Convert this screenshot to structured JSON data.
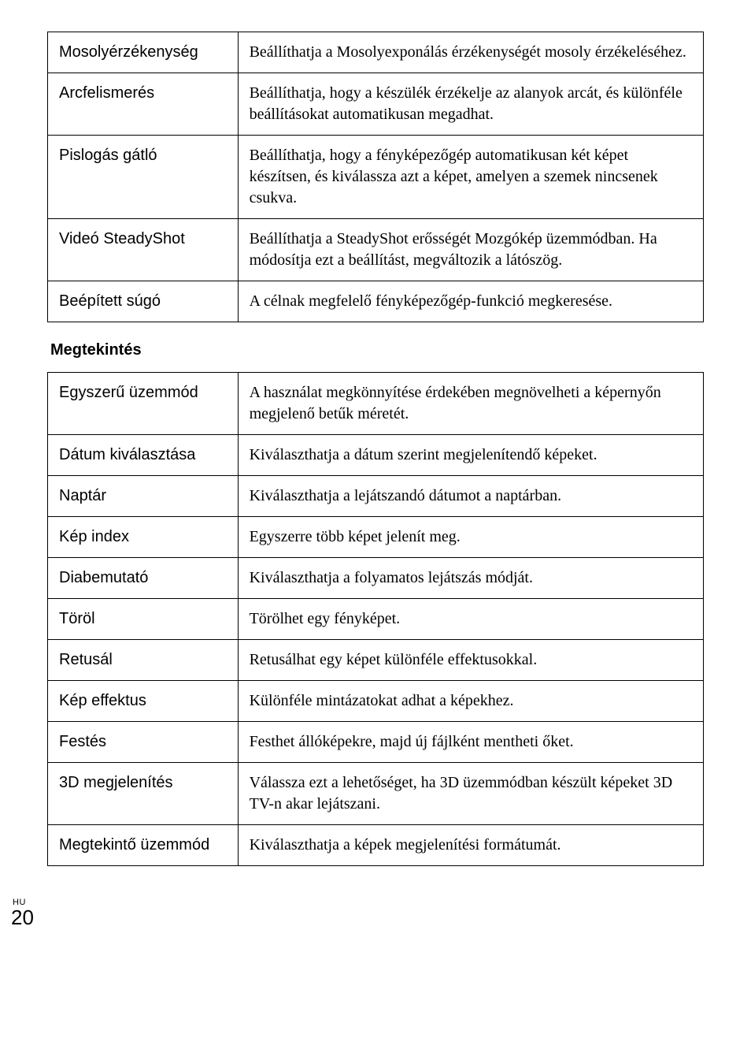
{
  "tables": {
    "top": {
      "rows": [
        {
          "label": "Mosolyérzékenység",
          "desc": "Beállíthatja a Mosolyexponálás érzékenységét mosoly érzékeléséhez."
        },
        {
          "label": "Arcfelismerés",
          "desc": "Beállíthatja, hogy a készülék érzékelje az alanyok arcát, és különféle beállításokat automatikusan megadhat."
        },
        {
          "label": "Pislogás gátló",
          "desc": "Beállíthatja, hogy a fényképezőgép automatikusan két képet készítsen, és kiválassza azt a képet, amelyen a szemek nincsenek csukva."
        },
        {
          "label": "Videó SteadyShot",
          "desc": "Beállíthatja a SteadyShot erősségét Mozgókép üzemmódban. Ha módosítja ezt a beállítást, megváltozik a látószög."
        },
        {
          "label": "Beépített súgó",
          "desc": "A célnak megfelelő fényképezőgép-funkció megkeresése."
        }
      ]
    },
    "bottom": {
      "rows": [
        {
          "label": "Egyszerű üzemmód",
          "desc": "A használat megkönnyítése érdekében megnövelheti a képernyőn megjelenő betűk méretét."
        },
        {
          "label": "Dátum kiválasztása",
          "desc": "Kiválaszthatja a dátum szerint megjelenítendő képeket."
        },
        {
          "label": "Naptár",
          "desc": "Kiválaszthatja a lejátszandó dátumot a naptárban."
        },
        {
          "label": "Kép index",
          "desc": "Egyszerre több képet jelenít meg."
        },
        {
          "label": "Diabemutató",
          "desc": "Kiválaszthatja a folyamatos lejátszás módját."
        },
        {
          "label": "Töröl",
          "desc": "Törölhet egy fényképet."
        },
        {
          "label": "Retusál",
          "desc": "Retusálhat egy képet különféle effektusokkal."
        },
        {
          "label": "Kép effektus",
          "desc": "Különféle mintázatokat adhat a képekhez."
        },
        {
          "label": "Festés",
          "desc": "Festhet állóképekre, majd új fájlként mentheti őket."
        },
        {
          "label": "3D megjelenítés",
          "desc": "Válassza ezt a lehetőséget, ha 3D üzemmódban készült képeket 3D TV-n akar lejátszani."
        },
        {
          "label": "Megtekintő üzemmód",
          "desc": "Kiválaszthatja a képek megjelenítési formátumát."
        }
      ]
    }
  },
  "section_title": "Megtekintés",
  "footer": {
    "lang": "HU",
    "page": "20"
  }
}
